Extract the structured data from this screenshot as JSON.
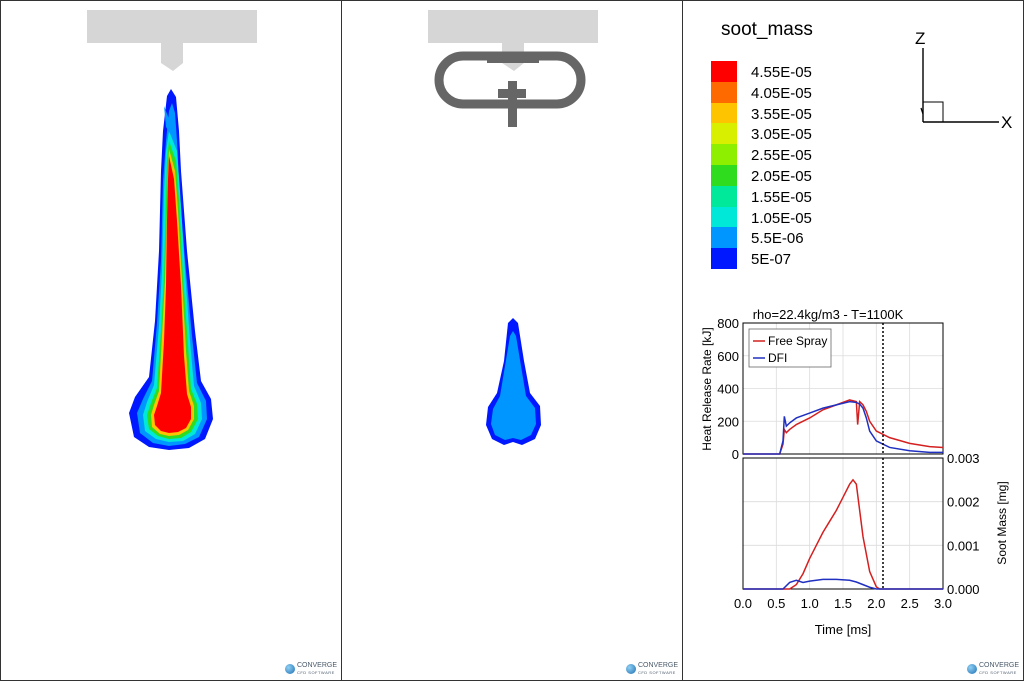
{
  "legend": {
    "title": "soot_mass",
    "labels": [
      "4.55E-05",
      "4.05E-05",
      "3.55E-05",
      "3.05E-05",
      "2.55E-05",
      "2.05E-05",
      "1.55E-05",
      "1.05E-05",
      "5.5E-06",
      "5E-07"
    ],
    "colors": [
      "#ff0000",
      "#ff6a00",
      "#ffc400",
      "#d8f000",
      "#8ef000",
      "#2fdc1e",
      "#00e89a",
      "#00e8d8",
      "#0096ff",
      "#0018ff"
    ]
  },
  "axes_triad": {
    "z": "Z",
    "x": "X"
  },
  "logo": {
    "name": "CONVERGE",
    "sub": "CFD SOFTWARE"
  },
  "chart_data": [
    {
      "type": "line",
      "title": "rho=22.4kg/m3 - T=1100K",
      "ylabel": "Heat Release Rate [kJ]",
      "xlim": [
        0,
        3
      ],
      "ylim": [
        0,
        800
      ],
      "yticks": [
        "800",
        "600",
        "400",
        "200",
        "0"
      ],
      "grid": true,
      "legend_position": "top-left",
      "series": [
        {
          "name": "Free Spray",
          "color": "#d42020",
          "x": [
            0,
            0.55,
            0.6,
            0.62,
            0.65,
            0.7,
            0.8,
            1.0,
            1.2,
            1.4,
            1.6,
            1.7,
            1.72,
            1.75,
            1.8,
            1.85,
            1.9,
            2.0,
            2.2,
            2.5,
            2.8,
            3.0
          ],
          "y": [
            0,
            0,
            60,
            150,
            130,
            150,
            180,
            220,
            270,
            300,
            330,
            320,
            180,
            320,
            300,
            260,
            200,
            140,
            100,
            65,
            45,
            40
          ]
        },
        {
          "name": "DFI",
          "color": "#2030c0",
          "x": [
            0,
            0.55,
            0.6,
            0.62,
            0.65,
            0.7,
            0.8,
            1.0,
            1.2,
            1.4,
            1.6,
            1.7,
            1.75,
            1.8,
            1.85,
            1.9,
            2.0,
            2.2,
            2.5,
            2.8,
            3.0
          ],
          "y": [
            0,
            0,
            80,
            230,
            170,
            190,
            220,
            250,
            280,
            300,
            320,
            315,
            305,
            280,
            220,
            140,
            80,
            40,
            20,
            10,
            10
          ]
        }
      ]
    },
    {
      "type": "line",
      "xlabel": "Time [ms]",
      "ylabel": "Soot Mass [mg]",
      "xlim": [
        0,
        3
      ],
      "ylim": [
        0,
        0.003
      ],
      "xticks": [
        "0.0",
        "0.5",
        "1.0",
        "1.5",
        "2.0",
        "2.5",
        "3.0"
      ],
      "yticks": [
        "0.003",
        "0.002",
        "0.001",
        "0.000"
      ],
      "grid": true,
      "series": [
        {
          "name": "Free Spray",
          "color": "#d42020",
          "x": [
            0,
            0.7,
            0.8,
            0.9,
            1.0,
            1.1,
            1.2,
            1.3,
            1.4,
            1.5,
            1.6,
            1.65,
            1.7,
            1.75,
            1.8,
            1.9,
            2.0,
            2.05,
            3.0
          ],
          "y": [
            0,
            0,
            0.0001,
            0.00035,
            0.0007,
            0.001,
            0.0013,
            0.00155,
            0.0018,
            0.0021,
            0.0024,
            0.0025,
            0.0024,
            0.0018,
            0.0012,
            0.0004,
            5e-05,
            0,
            0
          ]
        },
        {
          "name": "DFI",
          "color": "#2030c0",
          "x": [
            0,
            0.6,
            0.7,
            0.8,
            0.9,
            1.0,
            1.2,
            1.4,
            1.6,
            1.7,
            1.8,
            1.9,
            2.0,
            3.0
          ],
          "y": [
            0,
            0,
            0.00015,
            0.0002,
            0.00015,
            0.00018,
            0.00022,
            0.00022,
            0.0002,
            0.00016,
            0.0001,
            4e-05,
            0,
            0
          ]
        }
      ],
      "annotation_vline_x": 2.1
    }
  ]
}
